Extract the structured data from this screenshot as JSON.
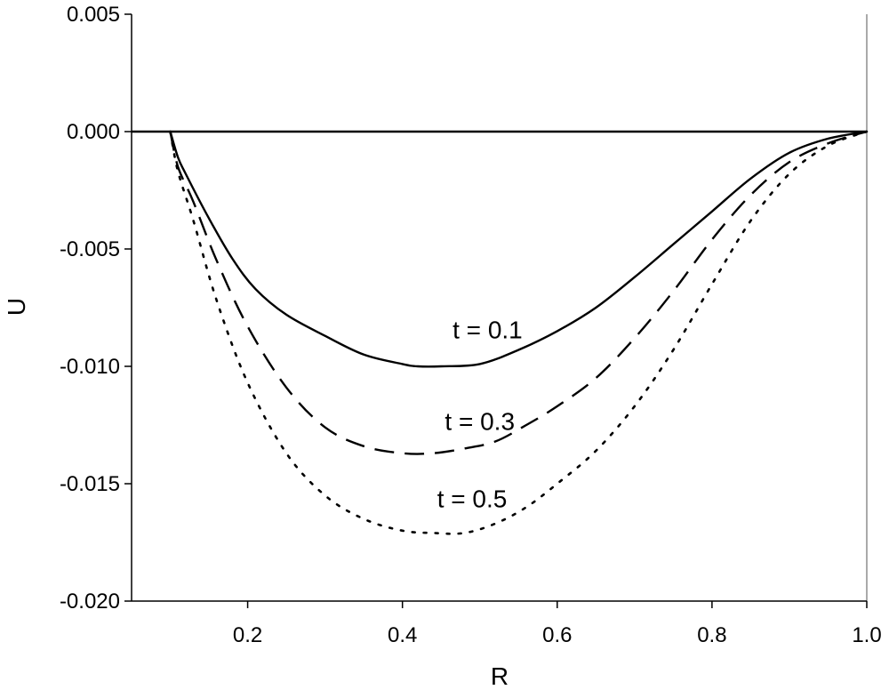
{
  "chart_data": {
    "type": "line",
    "xlabel": "R",
    "ylabel": "U",
    "xlim": [
      0.05,
      1.0
    ],
    "ylim": [
      -0.02,
      0.005
    ],
    "x_ticks": [
      0.2,
      0.4,
      0.6,
      0.8,
      1.0
    ],
    "x_tick_labels": [
      "0.2",
      "0.4",
      "0.6",
      "0.8",
      "1.0"
    ],
    "y_ticks": [
      0.005,
      0.0,
      -0.005,
      -0.01,
      -0.015,
      -0.02
    ],
    "y_tick_labels": [
      "0.005",
      "0.000",
      "-0.005",
      "-0.010",
      "-0.015",
      "-0.020"
    ],
    "grid": false,
    "reference_line_y": 0.0,
    "series": [
      {
        "name": "t = 0.1",
        "style": "solid",
        "x": [
          0.1,
          0.11,
          0.12,
          0.15,
          0.18,
          0.21,
          0.25,
          0.3,
          0.35,
          0.4,
          0.42,
          0.45,
          0.5,
          0.55,
          0.6,
          0.65,
          0.7,
          0.75,
          0.8,
          0.85,
          0.9,
          0.95,
          1.0
        ],
        "y": [
          0.0,
          -0.0011,
          -0.0018,
          -0.0037,
          -0.0054,
          -0.0067,
          -0.0078,
          -0.0087,
          -0.0095,
          -0.0099,
          -0.01,
          -0.01,
          -0.0099,
          -0.0093,
          -0.0085,
          -0.0075,
          -0.0062,
          -0.0048,
          -0.0034,
          -0.002,
          -0.0009,
          -0.0003,
          0.0
        ]
      },
      {
        "name": "t = 0.3",
        "style": "dashed",
        "x": [
          0.1,
          0.11,
          0.13,
          0.16,
          0.2,
          0.25,
          0.3,
          0.35,
          0.4,
          0.44,
          0.48,
          0.52,
          0.56,
          0.6,
          0.65,
          0.7,
          0.75,
          0.8,
          0.85,
          0.9,
          0.95,
          1.0
        ],
        "y": [
          0.0,
          -0.0015,
          -0.003,
          -0.0055,
          -0.0083,
          -0.0109,
          -0.0126,
          -0.0134,
          -0.0137,
          -0.0137,
          -0.0135,
          -0.0132,
          -0.0125,
          -0.0117,
          -0.0105,
          -0.0088,
          -0.0068,
          -0.0046,
          -0.0027,
          -0.0013,
          -0.0005,
          0.0
        ]
      },
      {
        "name": "t = 0.5",
        "style": "dotted",
        "x": [
          0.1,
          0.11,
          0.13,
          0.16,
          0.2,
          0.25,
          0.3,
          0.35,
          0.4,
          0.44,
          0.48,
          0.52,
          0.56,
          0.6,
          0.65,
          0.7,
          0.75,
          0.8,
          0.85,
          0.9,
          0.95,
          1.0
        ],
        "y": [
          0.0,
          -0.0017,
          -0.0038,
          -0.0072,
          -0.0107,
          -0.0137,
          -0.0155,
          -0.0165,
          -0.017,
          -0.0171,
          -0.0171,
          -0.0167,
          -0.016,
          -0.015,
          -0.0136,
          -0.0117,
          -0.0093,
          -0.0065,
          -0.0038,
          -0.0018,
          -0.0006,
          0.0
        ]
      }
    ],
    "annotations": [
      {
        "text": "t = 0.1",
        "x": 0.51,
        "y": -0.0088
      },
      {
        "text": "t = 0.3",
        "x": 0.5,
        "y": -0.0127
      },
      {
        "text": "t = 0.5",
        "x": 0.49,
        "y": -0.016
      }
    ]
  }
}
